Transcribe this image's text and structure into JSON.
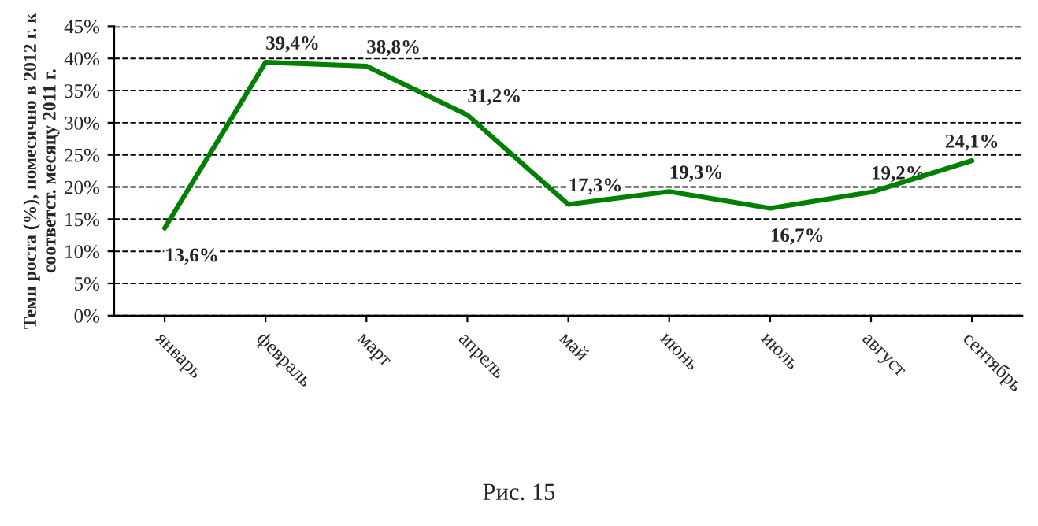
{
  "chart_data": {
    "type": "line",
    "ylabel": "Темп роста (%), помесячно в 2012 г. к\nсоответст. месяцу 2011 г.",
    "categories": [
      "январь",
      "февраль",
      "март",
      "апрель",
      "май",
      "июнь",
      "июль",
      "август",
      "сентябрь"
    ],
    "series": [
      {
        "color": "#008000",
        "values": [
          13.6,
          39.4,
          38.8,
          31.2,
          17.3,
          19.3,
          16.7,
          19.2,
          24.1
        ],
        "value_labels": [
          "13,6%",
          "39,4%",
          "38,8%",
          "31,2%",
          "17,3%",
          "19,3%",
          "16,7%",
          "19,2%",
          "24,1%"
        ]
      }
    ],
    "ylim": [
      0,
      45
    ],
    "yticks": [
      {
        "value": 0,
        "label": "0%"
      },
      {
        "value": 5,
        "label": "5%"
      },
      {
        "value": 10,
        "label": "10%"
      },
      {
        "value": 15,
        "label": "15%"
      },
      {
        "value": 20,
        "label": "20%"
      },
      {
        "value": 25,
        "label": "25%"
      },
      {
        "value": 30,
        "label": "30%"
      },
      {
        "value": 35,
        "label": "35%"
      },
      {
        "value": 40,
        "label": "40%"
      },
      {
        "value": 45,
        "label": "45%"
      }
    ],
    "grid": "y",
    "legend": false,
    "marker": "none",
    "line_style": "solid",
    "annotations": [
      "Рис. 15"
    ]
  }
}
